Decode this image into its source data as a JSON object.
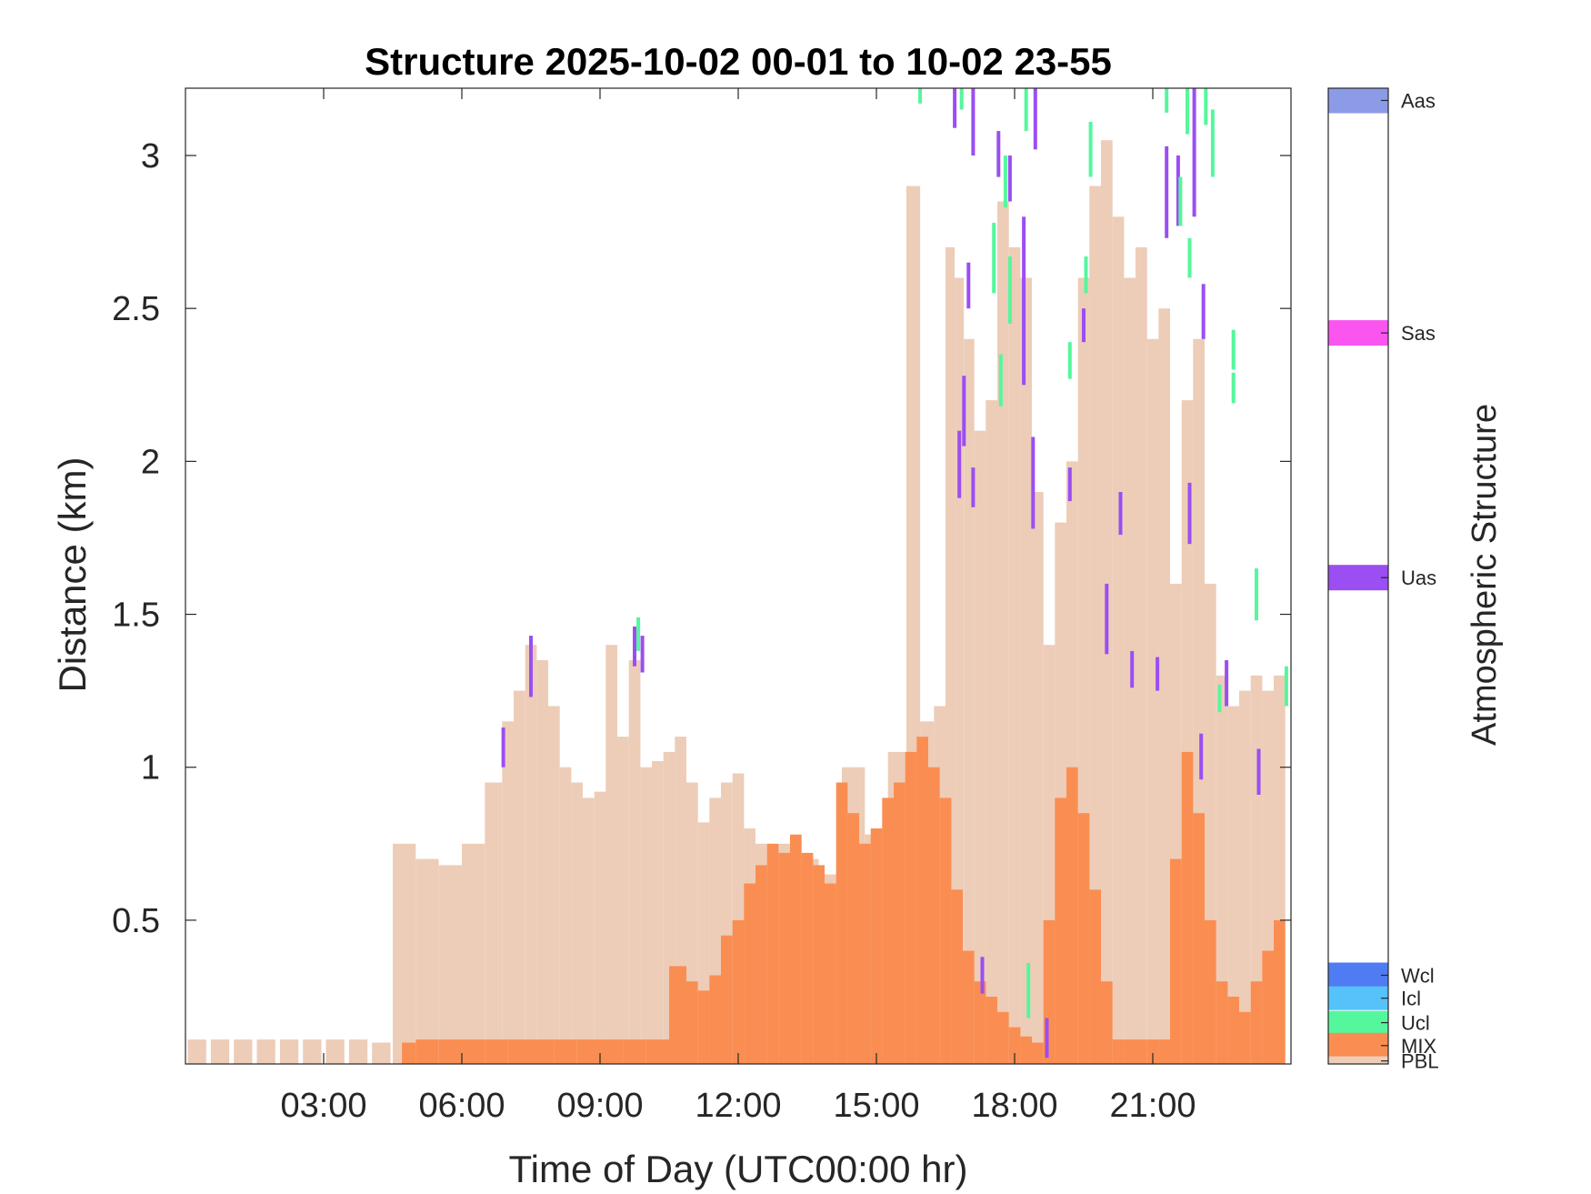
{
  "chart_data": {
    "type": "bar",
    "title": "Structure 2025-10-02 00-01 to 10-02 23-55",
    "xlabel": "Time of Day (UTC00:00 hr)",
    "ylabel": "Distance (km)",
    "x_tick_labels": [
      "03:00",
      "06:00",
      "09:00",
      "12:00",
      "15:00",
      "18:00",
      "21:00"
    ],
    "x_ticks": [
      3,
      6,
      9,
      12,
      15,
      18,
      21
    ],
    "y_tick_labels": [
      "0.5",
      "1",
      "1.5",
      "2",
      "2.5",
      "3"
    ],
    "y_ticks": [
      0.5,
      1,
      1.5,
      2,
      2.5,
      3
    ],
    "xlim": [
      0,
      24
    ],
    "ylim": [
      0.03,
      3.22
    ],
    "x_unit": "hour",
    "series": [
      {
        "name": "PBL",
        "color": "#edcdb8",
        "x": [
          0.25,
          0.75,
          1.25,
          1.75,
          2.25,
          2.75,
          3.25,
          3.75,
          4.25,
          4.75,
          5.25,
          5.75,
          6.25,
          6.75,
          7.0,
          7.25,
          7.5,
          7.75,
          8.0,
          8.25,
          8.5,
          8.75,
          9.0,
          9.25,
          9.5,
          9.75,
          10.0,
          10.25,
          10.5,
          10.75,
          11.0,
          11.25,
          11.5,
          11.75,
          12.0,
          12.25,
          12.5,
          12.75,
          13.0,
          13.5,
          14.0,
          14.5,
          15.0,
          15.5,
          15.8,
          16.1,
          16.4,
          16.6,
          16.8,
          17.0,
          17.25,
          17.5,
          17.75,
          18.0,
          18.25,
          18.5,
          18.75,
          19.0,
          19.25,
          19.5,
          19.75,
          20.0,
          20.25,
          20.5,
          20.75,
          21.0,
          21.25,
          21.5,
          21.75,
          22.0,
          22.25,
          22.5,
          22.75,
          23.0,
          23.25,
          23.5,
          23.75
        ],
        "values": [
          0.11,
          0.11,
          0.11,
          0.11,
          0.11,
          0.11,
          0.11,
          0.11,
          0.1,
          0.75,
          0.7,
          0.68,
          0.75,
          0.95,
          1.15,
          1.25,
          1.4,
          1.35,
          1.2,
          1.0,
          0.95,
          0.9,
          0.92,
          1.4,
          1.1,
          1.35,
          1.0,
          1.02,
          1.05,
          1.1,
          0.95,
          0.82,
          0.9,
          0.95,
          0.98,
          0.8,
          0.75,
          0.72,
          0.75,
          0.7,
          0.65,
          1.0,
          0.78,
          1.05,
          2.9,
          1.15,
          1.2,
          2.7,
          2.6,
          2.4,
          2.1,
          2.2,
          2.85,
          2.7,
          2.6,
          1.9,
          1.4,
          1.8,
          2.0,
          2.6,
          2.9,
          3.05,
          2.8,
          2.6,
          2.7,
          2.4,
          2.5,
          1.6,
          2.2,
          2.4,
          1.6,
          1.3,
          1.2,
          1.25,
          1.3,
          1.25,
          1.3
        ]
      },
      {
        "name": "MIX",
        "color": "#fa8e52",
        "x": [
          4.75,
          5.25,
          5.75,
          6.25,
          6.75,
          7.25,
          7.75,
          8.25,
          8.75,
          9.25,
          9.75,
          10.25,
          10.75,
          11.0,
          11.25,
          11.5,
          11.75,
          12.0,
          12.25,
          12.5,
          12.75,
          13.0,
          13.25,
          13.5,
          13.75,
          14.0,
          14.25,
          14.5,
          14.75,
          15.0,
          15.25,
          15.5,
          15.75,
          16.0,
          16.25,
          16.5,
          16.75,
          17.0,
          17.25,
          17.5,
          17.75,
          18.0,
          18.25,
          18.5,
          18.75,
          19.0,
          19.25,
          19.5,
          19.75,
          20.0,
          20.25,
          20.5,
          20.75,
          21.0,
          21.25,
          21.5,
          21.75,
          22.0,
          22.25,
          22.5,
          22.75,
          23.0,
          23.25,
          23.5,
          23.75
        ],
        "values": [
          0.1,
          0.11,
          0.11,
          0.11,
          0.11,
          0.11,
          0.11,
          0.11,
          0.11,
          0.11,
          0.11,
          0.11,
          0.35,
          0.3,
          0.27,
          0.32,
          0.45,
          0.5,
          0.62,
          0.68,
          0.75,
          0.72,
          0.78,
          0.72,
          0.68,
          0.62,
          0.95,
          0.85,
          0.75,
          0.8,
          0.9,
          0.95,
          1.05,
          1.1,
          1.0,
          0.9,
          0.6,
          0.4,
          0.3,
          0.25,
          0.2,
          0.15,
          0.12,
          0.1,
          0.5,
          0.9,
          1.0,
          0.85,
          0.6,
          0.3,
          0.11,
          0.11,
          0.11,
          0.11,
          0.11,
          0.7,
          1.05,
          0.85,
          0.5,
          0.3,
          0.25,
          0.2,
          0.3,
          0.4,
          0.5
        ]
      }
    ],
    "segments": [
      {
        "structure": "Uas",
        "x": 6.9,
        "y0": 1.0,
        "y1": 1.13
      },
      {
        "structure": "Uas",
        "x": 7.5,
        "y0": 1.23,
        "y1": 1.43
      },
      {
        "structure": "Uas",
        "x": 9.75,
        "y0": 1.33,
        "y1": 1.46
      },
      {
        "structure": "Uas",
        "x": 9.92,
        "y0": 1.31,
        "y1": 1.43
      },
      {
        "structure": "Ucl",
        "x": 9.83,
        "y0": 1.38,
        "y1": 1.49
      },
      {
        "structure": "Uas",
        "x": 16.7,
        "y0": 3.09,
        "y1": 3.22
      },
      {
        "structure": "Uas",
        "x": 16.9,
        "y0": 2.05,
        "y1": 2.28
      },
      {
        "structure": "Uas",
        "x": 17.1,
        "y0": 3.0,
        "y1": 3.22
      },
      {
        "structure": "Uas",
        "x": 17.1,
        "y0": 1.85,
        "y1": 1.98
      },
      {
        "structure": "Uas",
        "x": 16.8,
        "y0": 1.88,
        "y1": 2.1
      },
      {
        "structure": "Uas",
        "x": 17.0,
        "y0": 2.5,
        "y1": 2.65
      },
      {
        "structure": "Uas",
        "x": 17.65,
        "y0": 2.93,
        "y1": 3.08
      },
      {
        "structure": "Uas",
        "x": 17.9,
        "y0": 2.85,
        "y1": 3.0
      },
      {
        "structure": "Uas",
        "x": 18.2,
        "y0": 2.25,
        "y1": 2.8
      },
      {
        "structure": "Uas",
        "x": 18.4,
        "y0": 1.78,
        "y1": 2.08
      },
      {
        "structure": "Uas",
        "x": 18.45,
        "y0": 3.02,
        "y1": 3.22
      },
      {
        "structure": "Uas",
        "x": 19.2,
        "y0": 1.87,
        "y1": 1.98
      },
      {
        "structure": "Uas",
        "x": 19.5,
        "y0": 2.39,
        "y1": 2.5
      },
      {
        "structure": "Uas",
        "x": 20.0,
        "y0": 1.37,
        "y1": 1.6
      },
      {
        "structure": "Uas",
        "x": 20.3,
        "y0": 1.76,
        "y1": 1.9
      },
      {
        "structure": "Uas",
        "x": 20.55,
        "y0": 1.26,
        "y1": 1.38
      },
      {
        "structure": "Uas",
        "x": 21.1,
        "y0": 1.25,
        "y1": 1.36
      },
      {
        "structure": "Uas",
        "x": 21.3,
        "y0": 2.73,
        "y1": 3.03
      },
      {
        "structure": "Uas",
        "x": 21.55,
        "y0": 2.77,
        "y1": 3.0
      },
      {
        "structure": "Uas",
        "x": 21.8,
        "y0": 1.73,
        "y1": 1.93
      },
      {
        "structure": "Uas",
        "x": 21.9,
        "y0": 2.8,
        "y1": 3.22
      },
      {
        "structure": "Uas",
        "x": 22.1,
        "y0": 2.4,
        "y1": 2.58
      },
      {
        "structure": "Uas",
        "x": 22.05,
        "y0": 0.96,
        "y1": 1.11
      },
      {
        "structure": "Uas",
        "x": 22.6,
        "y0": 1.2,
        "y1": 1.35
      },
      {
        "structure": "Uas",
        "x": 23.3,
        "y0": 0.91,
        "y1": 1.06
      },
      {
        "structure": "Uas",
        "x": 17.3,
        "y0": 0.26,
        "y1": 0.38
      },
      {
        "structure": "Uas",
        "x": 18.7,
        "y0": 0.05,
        "y1": 0.18
      },
      {
        "structure": "Ucl",
        "x": 15.95,
        "y0": 3.17,
        "y1": 3.22
      },
      {
        "structure": "Ucl",
        "x": 16.85,
        "y0": 3.15,
        "y1": 3.22
      },
      {
        "structure": "Ucl",
        "x": 17.55,
        "y0": 2.55,
        "y1": 2.78
      },
      {
        "structure": "Ucl",
        "x": 17.7,
        "y0": 2.18,
        "y1": 2.35
      },
      {
        "structure": "Ucl",
        "x": 17.8,
        "y0": 2.83,
        "y1": 3.0
      },
      {
        "structure": "Ucl",
        "x": 17.9,
        "y0": 2.45,
        "y1": 2.67
      },
      {
        "structure": "Ucl",
        "x": 18.25,
        "y0": 3.08,
        "y1": 3.22
      },
      {
        "structure": "Ucl",
        "x": 18.3,
        "y0": 0.18,
        "y1": 0.36
      },
      {
        "structure": "Ucl",
        "x": 19.2,
        "y0": 2.27,
        "y1": 2.39
      },
      {
        "structure": "Ucl",
        "x": 19.55,
        "y0": 2.55,
        "y1": 2.67
      },
      {
        "structure": "Ucl",
        "x": 19.65,
        "y0": 2.93,
        "y1": 3.11
      },
      {
        "structure": "Ucl",
        "x": 21.3,
        "y0": 3.14,
        "y1": 3.22
      },
      {
        "structure": "Ucl",
        "x": 21.6,
        "y0": 2.77,
        "y1": 2.93
      },
      {
        "structure": "Ucl",
        "x": 21.75,
        "y0": 3.07,
        "y1": 3.22
      },
      {
        "structure": "Ucl",
        "x": 21.8,
        "y0": 2.6,
        "y1": 2.73
      },
      {
        "structure": "Ucl",
        "x": 22.15,
        "y0": 3.1,
        "y1": 3.22
      },
      {
        "structure": "Ucl",
        "x": 22.3,
        "y0": 2.93,
        "y1": 3.15
      },
      {
        "structure": "Ucl",
        "x": 22.45,
        "y0": 1.18,
        "y1": 1.27
      },
      {
        "structure": "Ucl",
        "x": 22.75,
        "y0": 2.3,
        "y1": 2.43
      },
      {
        "structure": "Ucl",
        "x": 22.75,
        "y0": 2.19,
        "y1": 2.29
      },
      {
        "structure": "Ucl",
        "x": 23.25,
        "y0": 1.48,
        "y1": 1.65
      },
      {
        "structure": "Ucl",
        "x": 23.9,
        "y0": 1.2,
        "y1": 1.33
      }
    ]
  },
  "colorbar": {
    "label": "Atmospheric Structure",
    "entries": [
      {
        "name": "Aas",
        "color": "#8c9be6",
        "value": 3.18
      },
      {
        "name": "Sas",
        "color": "#fb55f0",
        "value": 2.42
      },
      {
        "name": "Uas",
        "color": "#9b4ef2",
        "value": 1.62
      },
      {
        "name": "Wcl",
        "color": "#4f7cf2",
        "value": 0.32
      },
      {
        "name": "Icl",
        "color": "#55c2fa",
        "value": 0.245
      },
      {
        "name": "Ucl",
        "color": "#55f79c",
        "value": 0.165
      },
      {
        "name": "MIX",
        "color": "#fa8e52",
        "value": 0.09
      },
      {
        "name": "PBL",
        "color": "#edcdb8",
        "value": 0.04
      }
    ]
  }
}
